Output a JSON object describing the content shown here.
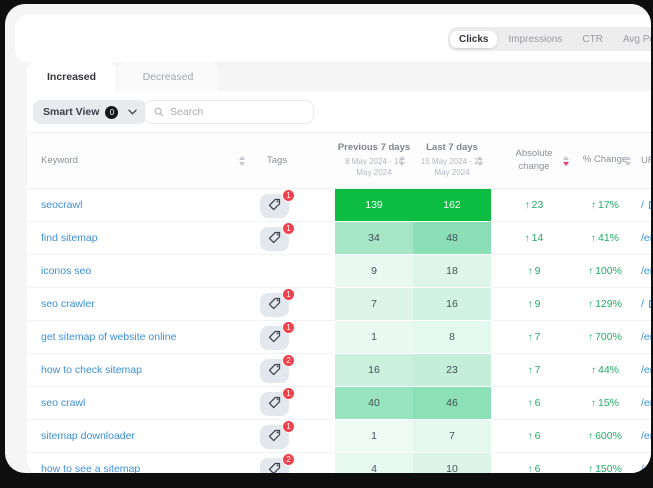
{
  "colors": {
    "accent_green": "#0cbd42",
    "link_blue": "#3d8fd8",
    "change_green": "#21ad64",
    "badge_red": "#f0414d"
  },
  "metric_tabs": {
    "items": [
      {
        "label": "Clicks",
        "active": true
      },
      {
        "label": "Impressions",
        "active": false
      },
      {
        "label": "CTR",
        "active": false
      },
      {
        "label": "Avg Position",
        "active": false
      }
    ]
  },
  "trend_tabs": {
    "items": [
      {
        "label": "Increased",
        "active": true
      },
      {
        "label": "Decreased",
        "active": false
      }
    ]
  },
  "filters": {
    "smart_view_label": "Smart View",
    "smart_view_count": "0",
    "search_placeholder": "Search"
  },
  "table": {
    "headers": {
      "keyword": "Keyword",
      "tags": "Tags",
      "previous_title": "Previous 7 days",
      "previous_subtitle": "8 May 2024 - 14 May 2024",
      "last_title": "Last 7 days",
      "last_subtitle": "15 May 2024 - 21 May 2024",
      "absolute_line1": "Absolute",
      "absolute_line2": "change",
      "percent": "% Change",
      "url": "URL"
    },
    "rows": [
      {
        "keyword": "seocrawl",
        "tag_count": "1",
        "prev": "139",
        "last": "162",
        "abs": "23",
        "pct": "17%",
        "url": "/",
        "url_external": true,
        "prev_bg": "#0cbd42",
        "last_bg": "#0cbd42",
        "cell_text": "#f2fff6"
      },
      {
        "keyword": "find sitemap",
        "tag_count": "1",
        "prev": "34",
        "last": "48",
        "abs": "14",
        "pct": "41%",
        "url": "/en",
        "url_external": false,
        "prev_bg": "#a6e5c5",
        "last_bg": "#8adfb7",
        "cell_text": "#42505a"
      },
      {
        "keyword": "iconos seo",
        "tag_count": "0",
        "prev": "9",
        "last": "18",
        "abs": "9",
        "pct": "100%",
        "url": "/em",
        "url_external": false,
        "prev_bg": "#e9f9f1",
        "last_bg": "#def6ea",
        "cell_text": "#47525c"
      },
      {
        "keyword": "seo crawler",
        "tag_count": "1",
        "prev": "7",
        "last": "16",
        "abs": "9",
        "pct": "129%",
        "url": "/",
        "url_external": true,
        "prev_bg": "#ddf5e9",
        "last_bg": "#d2f2e3",
        "cell_text": "#47525c"
      },
      {
        "keyword": "get sitemap of website online",
        "tag_count": "1",
        "prev": "1",
        "last": "8",
        "abs": "7",
        "pct": "700%",
        "url": "/en",
        "url_external": false,
        "prev_bg": "#eafaf2",
        "last_bg": "#e3f8ee",
        "cell_text": "#47525c"
      },
      {
        "keyword": "how to check sitemap",
        "tag_count": "2",
        "prev": "16",
        "last": "23",
        "abs": "7",
        "pct": "44%",
        "url": "/en",
        "url_external": false,
        "prev_bg": "#cbf0dd",
        "last_bg": "#c5eeda",
        "cell_text": "#42505a"
      },
      {
        "keyword": "seo crawl",
        "tag_count": "1",
        "prev": "40",
        "last": "46",
        "abs": "6",
        "pct": "15%",
        "url": "/en",
        "url_external": false,
        "prev_bg": "#97e4bf",
        "last_bg": "#8ce0b6",
        "cell_text": "#42505a"
      },
      {
        "keyword": "sitemap downloader",
        "tag_count": "1",
        "prev": "1",
        "last": "7",
        "abs": "6",
        "pct": "600%",
        "url": "/en",
        "url_external": false,
        "prev_bg": "#edfbf4",
        "last_bg": "#e4f8ee",
        "cell_text": "#47525c"
      },
      {
        "keyword": "how to see a sitemap",
        "tag_count": "2",
        "prev": "4",
        "last": "10",
        "abs": "6",
        "pct": "150%",
        "url": "/en",
        "url_external": false,
        "prev_bg": "#e8f9f0",
        "last_bg": "#dcf5e8",
        "cell_text": "#47525c"
      }
    ]
  }
}
